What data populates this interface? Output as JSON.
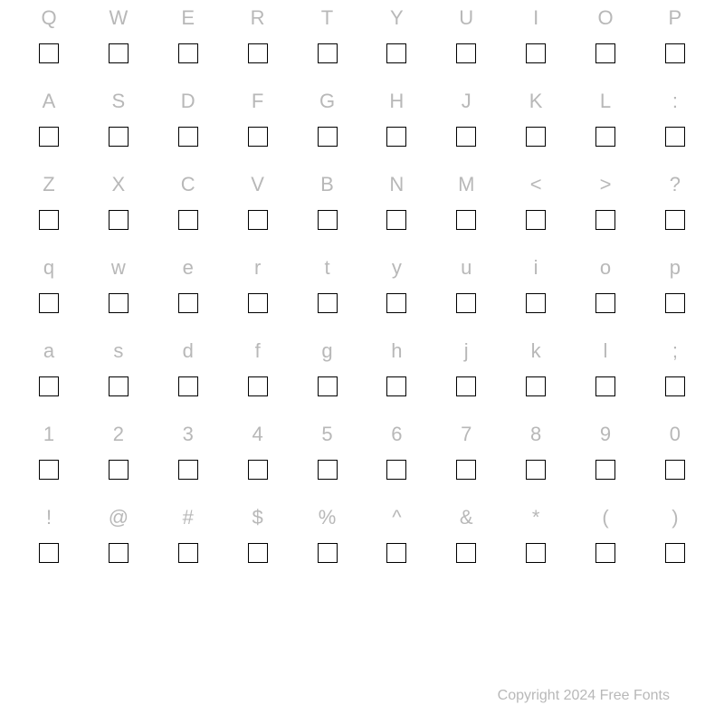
{
  "charmap": {
    "rows": [
      [
        "Q",
        "W",
        "E",
        "R",
        "T",
        "Y",
        "U",
        "I",
        "O",
        "P"
      ],
      [
        "A",
        "S",
        "D",
        "F",
        "G",
        "H",
        "J",
        "K",
        "L",
        ":"
      ],
      [
        "Z",
        "X",
        "C",
        "V",
        "B",
        "N",
        "M",
        "<",
        ">",
        "?"
      ],
      [
        "q",
        "w",
        "e",
        "r",
        "t",
        "y",
        "u",
        "i",
        "o",
        "p"
      ],
      [
        "a",
        "s",
        "d",
        "f",
        "g",
        "h",
        "j",
        "k",
        "l",
        ";"
      ],
      [
        "1",
        "2",
        "3",
        "4",
        "5",
        "6",
        "7",
        "8",
        "9",
        "0"
      ],
      [
        "!",
        "@",
        "#",
        "$",
        "%",
        "^",
        "&",
        "*",
        "(",
        ")"
      ]
    ],
    "label_color": "#b8b8b8",
    "glyph_border_color": "#000000",
    "background_color": "#ffffff",
    "label_fontsize": 22,
    "glyph_size": 22
  },
  "footer": {
    "copyright": "Copyright 2024 Free Fonts"
  }
}
